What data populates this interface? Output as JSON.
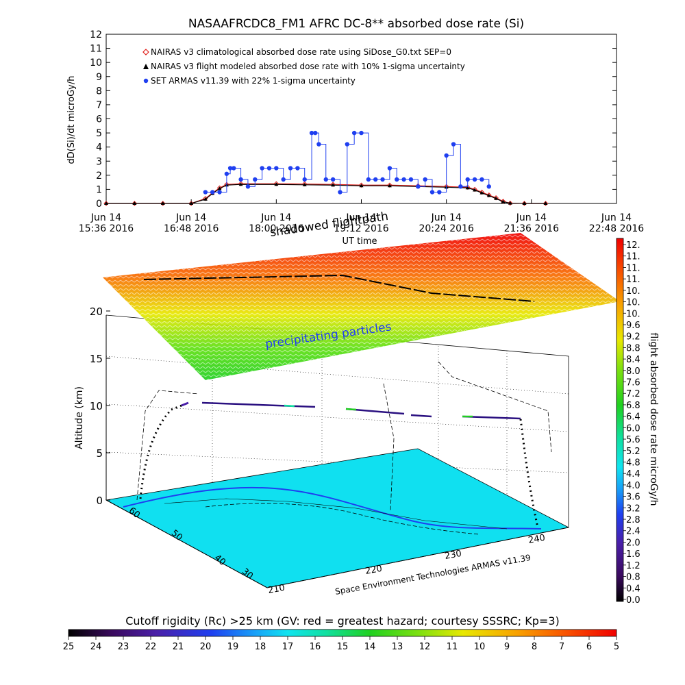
{
  "chart_data": [
    {
      "type": "line",
      "title": "NASAAFRCDC8_FM1 AFRC DC-8** absorbed dose rate (Si)",
      "ylabel": "dD(Si)/dt microGy/h",
      "ylim": [
        0,
        12
      ],
      "yticks": [
        "0",
        "1",
        "2",
        "3",
        "4",
        "5",
        "6",
        "7",
        "8",
        "9",
        "10",
        "11",
        "12"
      ],
      "xlim_hours": [
        15.6,
        22.8
      ],
      "xticks": [
        {
          "t": 15.6,
          "line1": "Jun 14",
          "line2": "15:36 2016"
        },
        {
          "t": 16.8,
          "line1": "Jun 14",
          "line2": "16:48 2016"
        },
        {
          "t": 18.0,
          "line1": "Jun 14",
          "line2": "18:00 2016"
        },
        {
          "t": 19.2,
          "line1": "Jun 14",
          "line2": "19:12 2016"
        },
        {
          "t": 20.4,
          "line1": "Jun 14",
          "line2": "20:24 2016"
        },
        {
          "t": 21.6,
          "line1": "Jun 14",
          "line2": "21:36 2016"
        },
        {
          "t": 22.8,
          "line1": "Jun 14",
          "line2": "22:48 2016"
        }
      ],
      "xlabel": "UT time",
      "series": [
        {
          "name": "NAIRAS v3 climatological absorbed dose rate using SiDose_G0.txt SEP=0",
          "color": "#e0201b",
          "marker": "diamond",
          "x": [
            15.6,
            16.0,
            16.4,
            16.8,
            17.0,
            17.1,
            17.2,
            17.3,
            17.5,
            18.0,
            18.4,
            18.8,
            19.2,
            19.6,
            20.0,
            20.4,
            20.7,
            20.8,
            20.9,
            21.0,
            21.1,
            21.2,
            21.3,
            21.5,
            21.8
          ],
          "y": [
            0,
            0,
            0,
            0,
            0.35,
            0.75,
            1.1,
            1.35,
            1.4,
            1.4,
            1.38,
            1.35,
            1.3,
            1.3,
            1.25,
            1.2,
            1.15,
            1.0,
            0.8,
            0.6,
            0.4,
            0.15,
            0.02,
            0,
            0
          ]
        },
        {
          "name": "NAIRAS v3 flight modeled absorbed dose rate with 10% 1-sigma uncertainty",
          "color": "#000000",
          "marker": "triangle",
          "x": [
            15.6,
            16.0,
            16.4,
            16.8,
            17.0,
            17.1,
            17.2,
            17.3,
            17.5,
            18.0,
            18.4,
            18.8,
            19.2,
            19.6,
            20.0,
            20.4,
            20.7,
            20.8,
            20.9,
            21.0,
            21.1,
            21.2,
            21.3,
            21.5,
            21.8
          ],
          "y": [
            0,
            0,
            0,
            0,
            0.3,
            0.7,
            1.05,
            1.3,
            1.35,
            1.35,
            1.32,
            1.3,
            1.25,
            1.25,
            1.2,
            1.15,
            1.1,
            0.95,
            0.75,
            0.55,
            0.35,
            0.12,
            0.02,
            0,
            0
          ]
        },
        {
          "name": "SET ARMAS v11.39 with 22% 1-sigma uncertainty",
          "color": "#1f3ff0",
          "marker": "circle",
          "x": [
            17.0,
            17.1,
            17.2,
            17.3,
            17.35,
            17.4,
            17.5,
            17.6,
            17.7,
            17.8,
            17.9,
            18.0,
            18.1,
            18.2,
            18.3,
            18.4,
            18.5,
            18.55,
            18.6,
            18.7,
            18.8,
            18.9,
            19.0,
            19.1,
            19.2,
            19.3,
            19.4,
            19.5,
            19.6,
            19.7,
            19.8,
            19.9,
            20.0,
            20.1,
            20.2,
            20.3,
            20.4,
            20.5,
            20.6,
            20.7,
            20.8,
            20.9,
            21.0
          ],
          "y": [
            0.8,
            0.8,
            0.8,
            2.1,
            2.5,
            2.5,
            1.7,
            1.2,
            1.7,
            2.5,
            2.5,
            2.5,
            1.7,
            2.5,
            2.5,
            1.7,
            5.0,
            5.0,
            4.2,
            1.7,
            1.7,
            0.8,
            4.2,
            5.0,
            5.0,
            1.7,
            1.7,
            1.7,
            2.5,
            1.7,
            1.7,
            1.7,
            1.2,
            1.7,
            0.8,
            0.8,
            3.4,
            4.2,
            1.2,
            1.7,
            1.7,
            1.7,
            1.2
          ]
        }
      ]
    },
    {
      "type": "scatter",
      "zlabel": "Altitude (km)",
      "zticks": [
        "0",
        "5",
        "10",
        "15",
        "20"
      ],
      "lat_ticks": [
        "30",
        "40",
        "50",
        "60"
      ],
      "lon_ticks": [
        "210",
        "220",
        "230",
        "240"
      ],
      "annotations": [
        "shadowed flightpath",
        "precipitating particles",
        "Space Environment Technologies ARMAS v11.39"
      ],
      "colorbar": {
        "label": "flight absorbed dose rate microGy/h",
        "ticks": [
          "12.",
          "11.",
          "11.",
          "11.",
          "10.",
          "10.",
          "10.",
          "9.6",
          "9.2",
          "8.8",
          "8.4",
          "8.0",
          "7.6",
          "7.2",
          "6.8",
          "6.4",
          "6.0",
          "5.6",
          "5.2",
          "4.8",
          "4.4",
          "4.0",
          "3.6",
          "3.2",
          "2.8",
          "2.4",
          "2.0",
          "1.6",
          "1.2",
          "0.8",
          "0.4",
          "0.0"
        ]
      }
    },
    {
      "type": "heatmap",
      "title": "Cutoff rigidity (Rc) >25 km (GV: red = greatest hazard; courtesy SSSRC; Kp=3)",
      "ticks": [
        "25",
        "24",
        "23",
        "22",
        "21",
        "20",
        "19",
        "18",
        "17",
        "16",
        "15",
        "14",
        "13",
        "12",
        "11",
        "10",
        "9",
        "8",
        "7",
        "6",
        "5"
      ]
    }
  ]
}
